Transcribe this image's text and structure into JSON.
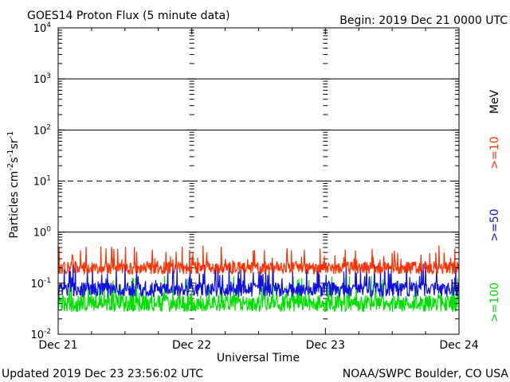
{
  "chart_data": {
    "type": "line",
    "title": "GOES14 Proton Flux (5 minute data)",
    "begin_label": "Begin: 2019 Dec 21 0000 UTC",
    "xlabel": "Universal Time",
    "ylabel": "Particles cm-2s-1sr-1",
    "ylabel_parts": {
      "main": "Particles cm",
      "sup1": "-2",
      "mid1": "s",
      "sup2": "-1",
      "mid2": "sr",
      "sup3": "-1"
    },
    "yscale": "log",
    "ylim": [
      0.01,
      10000
    ],
    "y_ticks": [
      {
        "base": "10",
        "exp": "-2",
        "value": 0.01
      },
      {
        "base": "10",
        "exp": "-1",
        "value": 0.1
      },
      {
        "base": "10",
        "exp": "0",
        "value": 1
      },
      {
        "base": "10",
        "exp": "1",
        "value": 10
      },
      {
        "base": "10",
        "exp": "2",
        "value": 100
      },
      {
        "base": "10",
        "exp": "3",
        "value": 1000
      },
      {
        "base": "10",
        "exp": "4",
        "value": 10000
      }
    ],
    "x_ticks": [
      "Dec 21",
      "Dec 22",
      "Dec 23",
      "Dec 24"
    ],
    "xlim_days": [
      0,
      3
    ],
    "unit_label": "MeV",
    "gridlines": [
      {
        "value": 1000,
        "style": "solid"
      },
      {
        "value": 100,
        "style": "solid"
      },
      {
        "value": 10,
        "style": "dashed"
      },
      {
        "value": 1,
        "style": "solid"
      }
    ],
    "series": [
      {
        "name": ">=10",
        "color": "#ff3000",
        "baseline": 0.2,
        "min": 0.14,
        "max": 0.55
      },
      {
        "name": ">=50",
        "color": "#1010e0",
        "baseline": 0.075,
        "min": 0.05,
        "max": 0.25
      },
      {
        "name": ">=100",
        "color": "#00e000",
        "baseline": 0.04,
        "min": 0.025,
        "max": 0.14
      }
    ],
    "footer_left": "Updated 2019 Dec 23 23:56:02 UTC",
    "footer_right": "NOAA/SWPC Boulder, CO USA"
  }
}
